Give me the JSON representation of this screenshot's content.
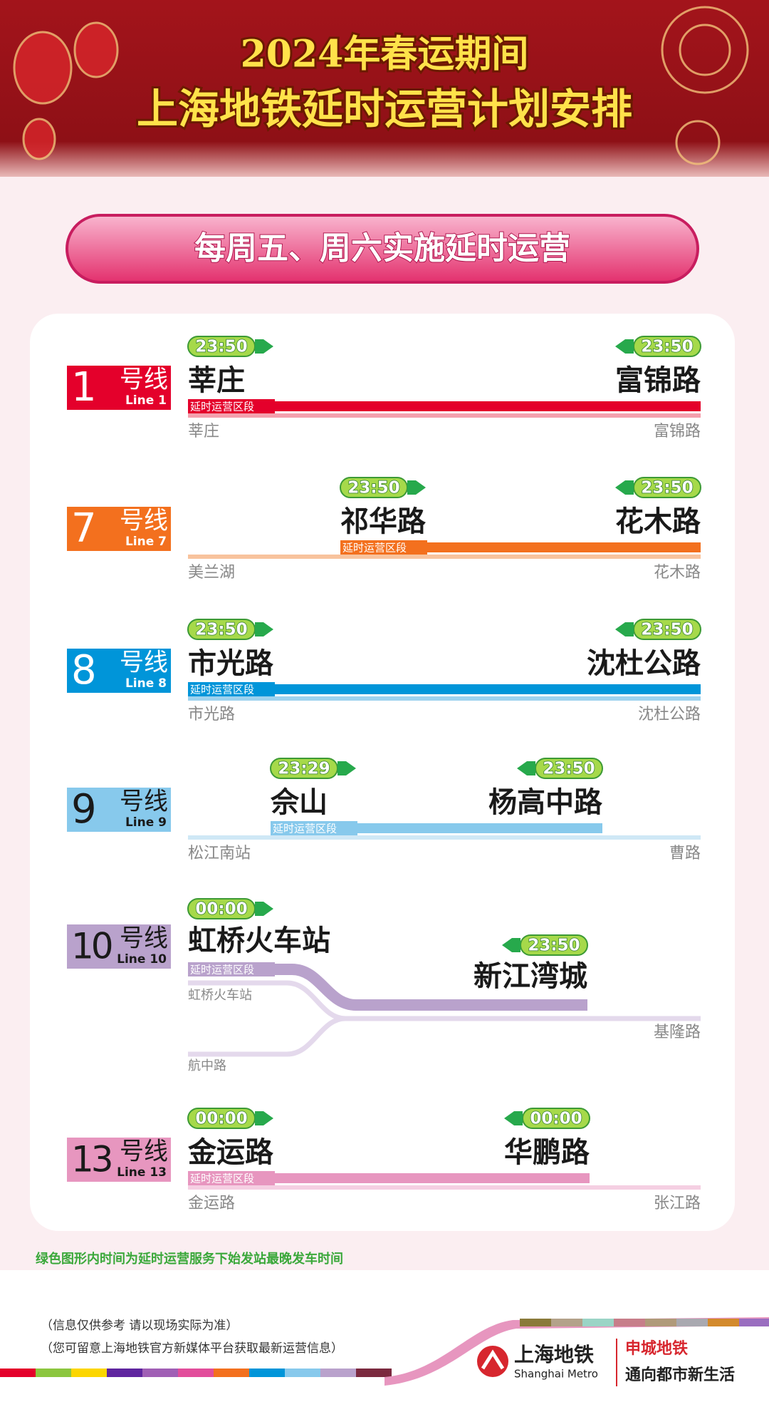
{
  "header": {
    "title_line1": "2024年春运期间",
    "title_line2": "上海地铁延时运营计划安排"
  },
  "banner": "每周五、周六实施延时运营",
  "section_label": "延时运营区段",
  "lines": [
    {
      "number": "1",
      "suffix": "号线",
      "english": "Line 1",
      "color": "#e4002b",
      "light_color": "#f4a0ad",
      "start_time": "23:50",
      "start_station": "莘庄",
      "end_time": "23:50",
      "end_station": "富锦路",
      "terminal_left": "莘庄",
      "terminal_right": "富锦路"
    },
    {
      "number": "7",
      "suffix": "号线",
      "english": "Line 7",
      "color": "#f3701e",
      "light_color": "#f8c39d",
      "start_time": "23:50",
      "start_station": "祁华路",
      "end_time": "23:50",
      "end_station": "花木路",
      "terminal_left": "美兰湖",
      "terminal_right": "花木路"
    },
    {
      "number": "8",
      "suffix": "号线",
      "english": "Line 8",
      "color": "#0095d9",
      "light_color": "#9dd2ee",
      "start_time": "23:50",
      "start_station": "市光路",
      "end_time": "23:50",
      "end_station": "沈杜公路",
      "terminal_left": "市光路",
      "terminal_right": "沈杜公路"
    },
    {
      "number": "9",
      "suffix": "号线",
      "english": "Line 9",
      "color": "#87c9ec",
      "light_color": "#cfe8f6",
      "start_time": "23:29",
      "start_station": "佘山",
      "end_time": "23:50",
      "end_station": "杨高中路",
      "terminal_left": "松江南站",
      "terminal_right": "曹路"
    },
    {
      "number": "10",
      "suffix": "号线",
      "english": "Line 10",
      "color": "#b9a2cc",
      "light_color": "#e4d9ec",
      "start_time": "00:00",
      "start_station": "虹桥火车站",
      "end_time": "23:50",
      "end_station": "新江湾城",
      "terminal_left": "虹桥火车站",
      "terminal_branch": "航中路",
      "terminal_right": "基隆路"
    },
    {
      "number": "13",
      "suffix": "号线",
      "english": "Line 13",
      "color": "#e796bf",
      "light_color": "#f5cfe2",
      "start_time": "00:00",
      "start_station": "金运路",
      "end_time": "00:00",
      "end_station": "华鹏路",
      "terminal_left": "金运路",
      "terminal_right": "张江路"
    }
  ],
  "note": "绿色图形内时间为延时运营服务下始发站最晚发车时间",
  "footer": {
    "disclaimer1": "（信息仅供参考 请以现场实际为准）",
    "disclaimer2": "（您可留意上海地铁官方新媒体平台获取最新运营信息）",
    "logo_cn": "上海地铁",
    "logo_en": "Shanghai Metro",
    "slogan1": "申城地铁",
    "slogan2": "通向都市新生活"
  }
}
